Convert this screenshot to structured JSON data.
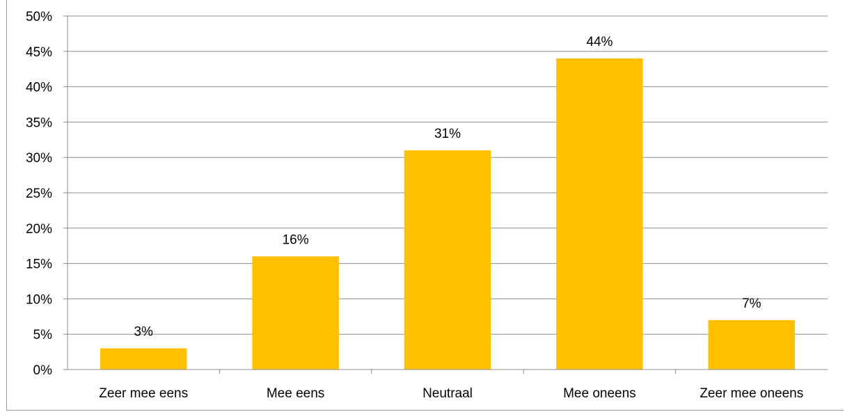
{
  "chart_data": {
    "type": "bar",
    "categories": [
      "Zeer mee eens",
      "Mee eens",
      "Neutraal",
      "Mee oneens",
      "Zeer mee oneens"
    ],
    "values": [
      3,
      16,
      31,
      44,
      7
    ],
    "value_labels": [
      "3%",
      "16%",
      "31%",
      "44%",
      "7%"
    ],
    "y_tick_labels": [
      "0%",
      "5%",
      "10%",
      "15%",
      "20%",
      "25%",
      "30%",
      "35%",
      "40%",
      "45%",
      "50%"
    ],
    "ylim": [
      0,
      50
    ],
    "grid": true,
    "legend": "none",
    "bar_color": "#FFC000",
    "grid_color": "#8c8c8c"
  }
}
